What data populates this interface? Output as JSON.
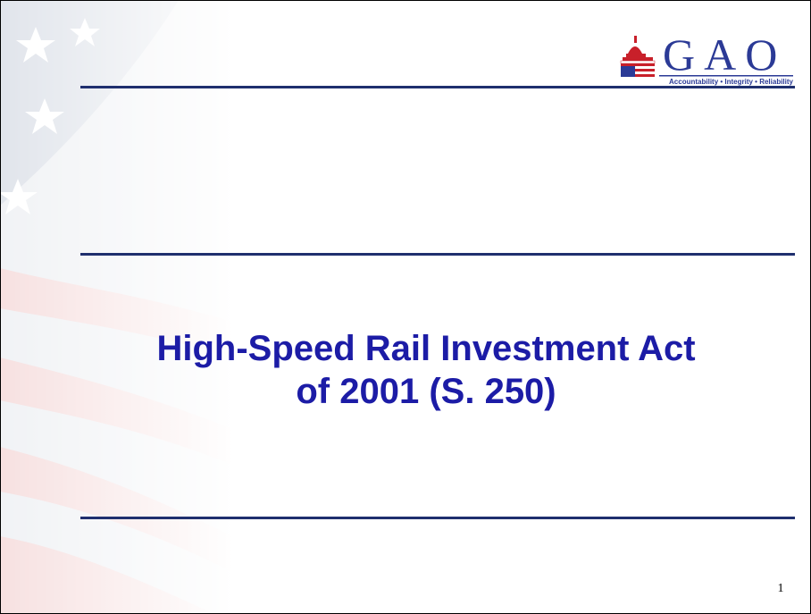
{
  "logo": {
    "text": "GAO",
    "tagline": "Accountability • Integrity • Reliability"
  },
  "title": {
    "lines": [
      "High-Speed Rail Investment Act",
      "of 2001 (S. 250)"
    ]
  },
  "page_number": "1"
}
